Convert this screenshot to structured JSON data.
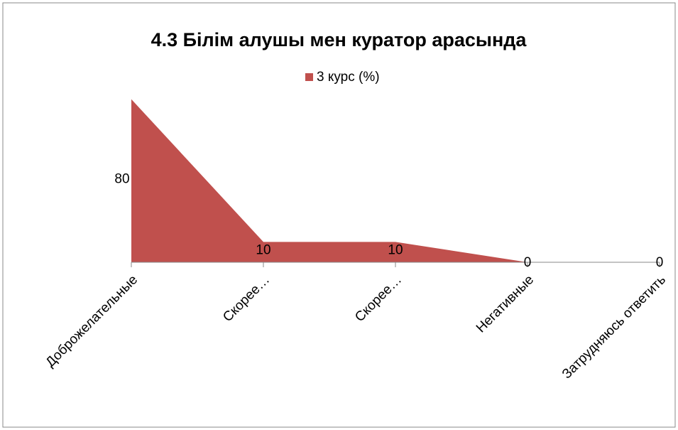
{
  "chart_data": {
    "type": "area",
    "title": "4.3 Білім алушы мен куратор арасында",
    "categories": [
      "Доброжелательные",
      "Скорее…",
      "Скорее…",
      "Негативные",
      "Затрудняюсь ответить"
    ],
    "series": [
      {
        "name": "3 курс (%)",
        "color": "#c0504d",
        "values": [
          80,
          10,
          10,
          0,
          0
        ]
      }
    ],
    "ylim": [
      0,
      90
    ],
    "legend": "top"
  }
}
